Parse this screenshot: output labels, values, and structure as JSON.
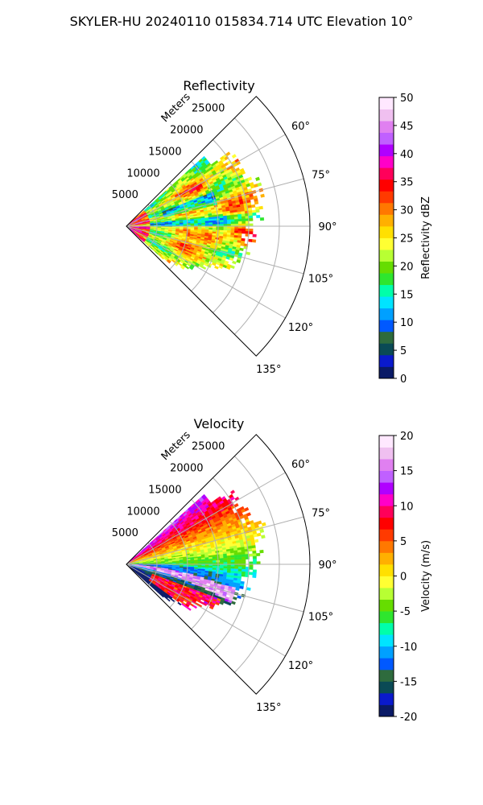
{
  "figure_title": "SKYLER-HU  20240110  015834.714 UTC Elevation 10°",
  "chart_data": [
    {
      "type": "heatmap",
      "projection": "polar-sector",
      "title": "Reflectivity",
      "range_label": "Meters",
      "range_ticks": [
        "5000",
        "10000",
        "15000",
        "20000",
        "25000"
      ],
      "azimuth_ticks": [
        "60°",
        "75°",
        "90°",
        "105°",
        "120°",
        "135°"
      ],
      "azimuth_extent_deg": [
        45,
        135
      ],
      "range_extent_m": [
        0,
        30000
      ],
      "grid": true,
      "colorbar": {
        "label": "Reflectivity dBZ",
        "range": [
          0,
          50
        ],
        "ticks": [
          "0",
          "5",
          "10",
          "15",
          "20",
          "25",
          "30",
          "35",
          "40",
          "45",
          "50"
        ]
      },
      "colors": [
        "#0a1a66",
        "#0a1acc",
        "#0a4a55",
        "#2e6b3d",
        "#0059ff",
        "#00a0ff",
        "#00e4ff",
        "#00ffaa",
        "#2ee62e",
        "#66dd00",
        "#b8ff33",
        "#ffff33",
        "#ffe000",
        "#ffb000",
        "#ff7800",
        "#ff3a00",
        "#ff0000",
        "#ff005a",
        "#ff00c8",
        "#b000ff",
        "#c060ff",
        "#e080f0",
        "#f0c0f0",
        "#ffe8ff"
      ]
    },
    {
      "type": "heatmap",
      "projection": "polar-sector",
      "title": "Velocity",
      "range_label": "Meters",
      "range_ticks": [
        "5000",
        "10000",
        "15000",
        "20000",
        "25000"
      ],
      "azimuth_ticks": [
        "60°",
        "75°",
        "90°",
        "105°",
        "120°",
        "135°"
      ],
      "azimuth_extent_deg": [
        45,
        135
      ],
      "range_extent_m": [
        0,
        30000
      ],
      "grid": true,
      "colorbar": {
        "label": "Velocity (m/s)",
        "range": [
          -20,
          20
        ],
        "ticks": [
          "-20",
          "-15",
          "-10",
          "-5",
          "0",
          "5",
          "10",
          "15",
          "20"
        ]
      },
      "colors": [
        "#0a1a66",
        "#0a1acc",
        "#0a4a55",
        "#2e6b3d",
        "#0059ff",
        "#00a0ff",
        "#00e4ff",
        "#00ffaa",
        "#2ee62e",
        "#66dd00",
        "#b8ff33",
        "#ffff33",
        "#ffe000",
        "#ffb000",
        "#ff7800",
        "#ff3a00",
        "#ff0000",
        "#ff005a",
        "#ff00c8",
        "#b000ff",
        "#c060ff",
        "#e080f0",
        "#f0c0f0",
        "#ffe8ff"
      ]
    }
  ]
}
